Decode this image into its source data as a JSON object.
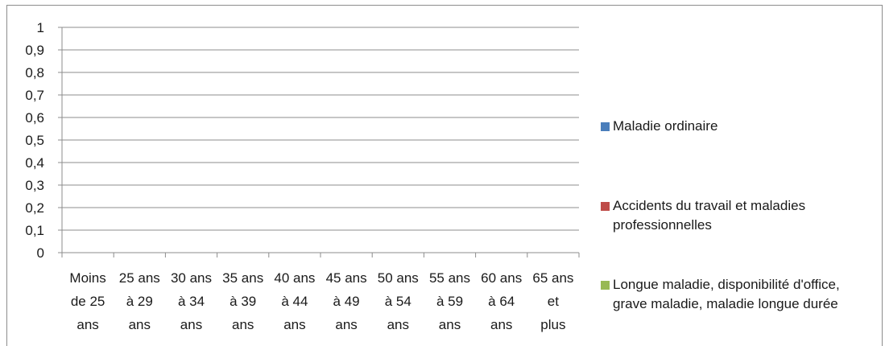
{
  "chart_data": {
    "type": "bar",
    "categories": [
      [
        "Moins",
        "de 25",
        "ans"
      ],
      [
        "25 ans",
        "à 29",
        "ans"
      ],
      [
        "30 ans",
        "à 34",
        "ans"
      ],
      [
        "35 ans",
        "à 39",
        "ans"
      ],
      [
        "40 ans",
        "à 44",
        "ans"
      ],
      [
        "45 ans",
        "à 49",
        "ans"
      ],
      [
        "50 ans",
        "à 54",
        "ans"
      ],
      [
        "55 ans",
        "à 59",
        "ans"
      ],
      [
        "60 ans",
        "à 64",
        "ans"
      ],
      [
        "65 ans",
        "et",
        "plus"
      ]
    ],
    "series": [
      {
        "name": "Maladie ordinaire",
        "color": "#4a7ebb",
        "values": [
          0,
          0,
          0,
          0,
          0,
          0,
          0,
          0,
          0,
          0
        ]
      },
      {
        "name": "Accidents du travail et maladies professionnelles",
        "color": "#be4b48",
        "values": [
          0,
          0,
          0,
          0,
          0,
          0,
          0,
          0,
          0,
          0
        ]
      },
      {
        "name": "Longue maladie, disponibilité d'office, grave maladie, maladie longue durée",
        "color": "#98b954",
        "values": [
          0,
          0,
          0,
          0,
          0,
          0,
          0,
          0,
          0,
          0
        ]
      }
    ],
    "yticks": [
      "0",
      "0,1",
      "0,2",
      "0,3",
      "0,4",
      "0,5",
      "0,6",
      "0,7",
      "0,8",
      "0,9",
      "1"
    ],
    "ylim": [
      0,
      1
    ],
    "grid": true,
    "legend_position": "right"
  }
}
